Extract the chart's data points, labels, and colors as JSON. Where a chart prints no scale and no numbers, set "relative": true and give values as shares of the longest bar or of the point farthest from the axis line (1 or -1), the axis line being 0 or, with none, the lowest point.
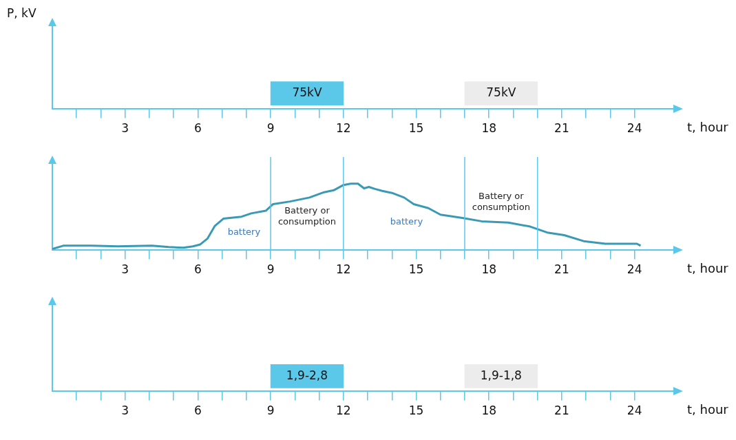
{
  "chart_data": [
    {
      "type": "bar",
      "orientation": "horizontal",
      "categories": [
        null
      ],
      "tick_labels": "x",
      "ylabel": "P, kV",
      "xlabel": "t, hour",
      "xlim": [
        0,
        25.6
      ],
      "xticks": [
        {
          "value": 1,
          "label": null
        },
        {
          "value": 2,
          "label": null
        },
        3,
        {
          "value": 4,
          "label": null
        },
        {
          "value": 5,
          "label": null
        },
        6,
        {
          "value": 7,
          "label": null
        },
        {
          "value": 8,
          "label": null
        },
        9,
        {
          "value": 10,
          "label": null
        },
        {
          "value": 11,
          "label": null
        },
        12,
        {
          "value": 13,
          "label": null
        },
        {
          "value": 14,
          "label": null
        },
        15,
        {
          "value": 16,
          "label": null
        },
        {
          "value": 17,
          "label": null
        },
        18,
        {
          "value": 19,
          "label": null
        },
        {
          "value": 20,
          "label": null
        },
        21,
        {
          "value": 22,
          "label": null
        },
        {
          "value": 23,
          "label": null
        },
        24
      ],
      "series": [
        {
          "name": "75kV",
          "color": "#5bc8ea",
          "base": [
            9
          ],
          "values": [
            3
          ]
        },
        {
          "name": "75kV",
          "color": "#ececec",
          "base": [
            17
          ],
          "values": [
            3
          ]
        }
      ]
    },
    {
      "type": "line",
      "relative": true,
      "xlabel": "t, hour",
      "xlim": [
        0,
        25.6
      ],
      "xticks": [
        {
          "value": 1,
          "label": null
        },
        {
          "value": 2,
          "label": null
        },
        3,
        {
          "value": 4,
          "label": null
        },
        {
          "value": 5,
          "label": null
        },
        6,
        {
          "value": 7,
          "label": null
        },
        {
          "value": 8,
          "label": null
        },
        9,
        {
          "value": 10,
          "label": null
        },
        {
          "value": 11,
          "label": null
        },
        12,
        {
          "value": 13,
          "label": null
        },
        {
          "value": 14,
          "label": null
        },
        15,
        {
          "value": 16,
          "label": null
        },
        {
          "value": 17,
          "label": null
        },
        18,
        {
          "value": 19,
          "label": null
        },
        {
          "value": 20,
          "label": null
        },
        21,
        {
          "value": 22,
          "label": null
        },
        {
          "value": 23,
          "label": null
        },
        24
      ],
      "x": [
        0,
        0.45,
        1.6,
        2.7,
        4.1,
        4.8,
        5.4,
        5.8,
        6.1,
        6.4,
        6.7,
        7.05,
        7.8,
        8.2,
        8.8,
        9.1,
        9.8,
        10.6,
        11.2,
        11.6,
        12.0,
        12.3,
        12.6,
        12.85,
        13.05,
        13.3,
        13.6,
        14.0,
        14.5,
        14.9,
        15.5,
        16.0,
        16.9,
        17.7,
        18.8,
        19.7,
        20.4,
        21.1,
        21.9,
        22.8,
        24.1,
        24.25
      ],
      "series": [
        {
          "color": "#3a9ab5",
          "values": [
            0.01,
            0.06,
            0.06,
            0.05,
            0.06,
            0.04,
            0.03,
            0.05,
            0.08,
            0.17,
            0.36,
            0.47,
            0.5,
            0.55,
            0.59,
            0.69,
            0.73,
            0.79,
            0.87,
            0.9,
            0.98,
            1,
            1,
            0.93,
            0.95,
            0.92,
            0.89,
            0.86,
            0.79,
            0.69,
            0.63,
            0.53,
            0.48,
            0.43,
            0.41,
            0.35,
            0.26,
            0.22,
            0.13,
            0.09,
            0.09,
            0.06
          ]
        }
      ],
      "marker": "none",
      "ref_lines": [
        {
          "axis": "x",
          "value": 9,
          "color": "#5bc8ea"
        },
        {
          "axis": "x",
          "value": 12,
          "color": "#5bc8ea"
        },
        {
          "axis": "x",
          "value": 17,
          "color": "#5bc8ea"
        },
        {
          "axis": "x",
          "value": 20,
          "color": "#5bc8ea"
        }
      ],
      "annotations": [
        "Battery or consumption",
        "Battery or consumption",
        "battery",
        "battery"
      ]
    },
    {
      "type": "bar",
      "orientation": "horizontal",
      "categories": [
        null
      ],
      "tick_labels": "x",
      "xlabel": "t, hour",
      "xlim": [
        0,
        25.6
      ],
      "xticks": [
        {
          "value": 1,
          "label": null
        },
        {
          "value": 2,
          "label": null
        },
        3,
        {
          "value": 4,
          "label": null
        },
        {
          "value": 5,
          "label": null
        },
        6,
        {
          "value": 7,
          "label": null
        },
        {
          "value": 8,
          "label": null
        },
        9,
        {
          "value": 10,
          "label": null
        },
        {
          "value": 11,
          "label": null
        },
        12,
        {
          "value": 13,
          "label": null
        },
        {
          "value": 14,
          "label": null
        },
        15,
        {
          "value": 16,
          "label": null
        },
        {
          "value": 17,
          "label": null
        },
        18,
        {
          "value": 19,
          "label": null
        },
        {
          "value": 20,
          "label": null
        },
        21,
        {
          "value": 22,
          "label": null
        },
        {
          "value": 23,
          "label": null
        },
        24
      ],
      "series": [
        {
          "name": "1,9-2,8",
          "color": "#5bc8ea",
          "base": [
            9
          ],
          "values": [
            3
          ]
        },
        {
          "name": "1,9-1,8",
          "color": "#ececec",
          "base": [
            17
          ],
          "values": [
            3
          ]
        }
      ]
    }
  ]
}
